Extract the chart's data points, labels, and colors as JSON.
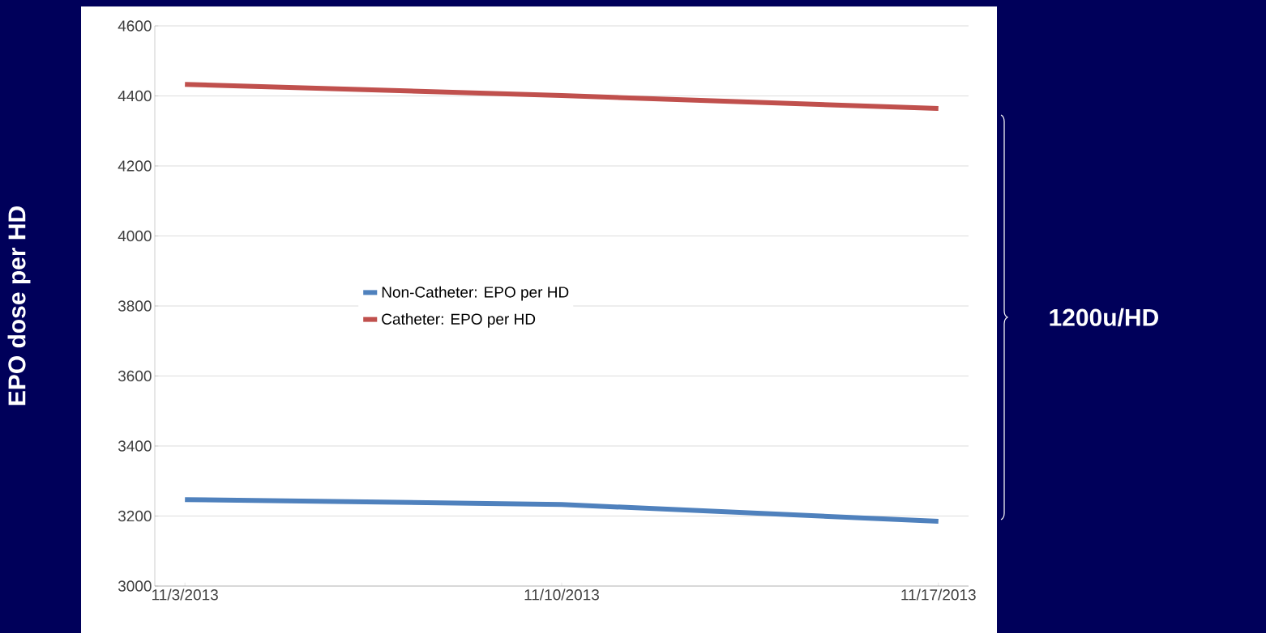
{
  "chart_data": {
    "type": "line",
    "ylabel": "EPO dose per HD",
    "categories": [
      "11/3/2013",
      "11/10/2013",
      "11/17/2013"
    ],
    "series": [
      {
        "name": "Non-Catheter: EPO per HD",
        "color": "#4f81bd",
        "values": [
          3247,
          3233,
          3185
        ]
      },
      {
        "name": "Catheter: EPO per HD",
        "color": "#c0504d",
        "values": [
          4433,
          4401,
          4364
        ]
      }
    ],
    "ylim": [
      3000,
      4600
    ],
    "yticks": [
      3000,
      3200,
      3400,
      3600,
      3800,
      4000,
      4200,
      4400,
      4600
    ],
    "grid": "y",
    "legend": "center",
    "marker": "none",
    "line_style": "solid",
    "annotations": [
      "1200u/HD"
    ]
  }
}
